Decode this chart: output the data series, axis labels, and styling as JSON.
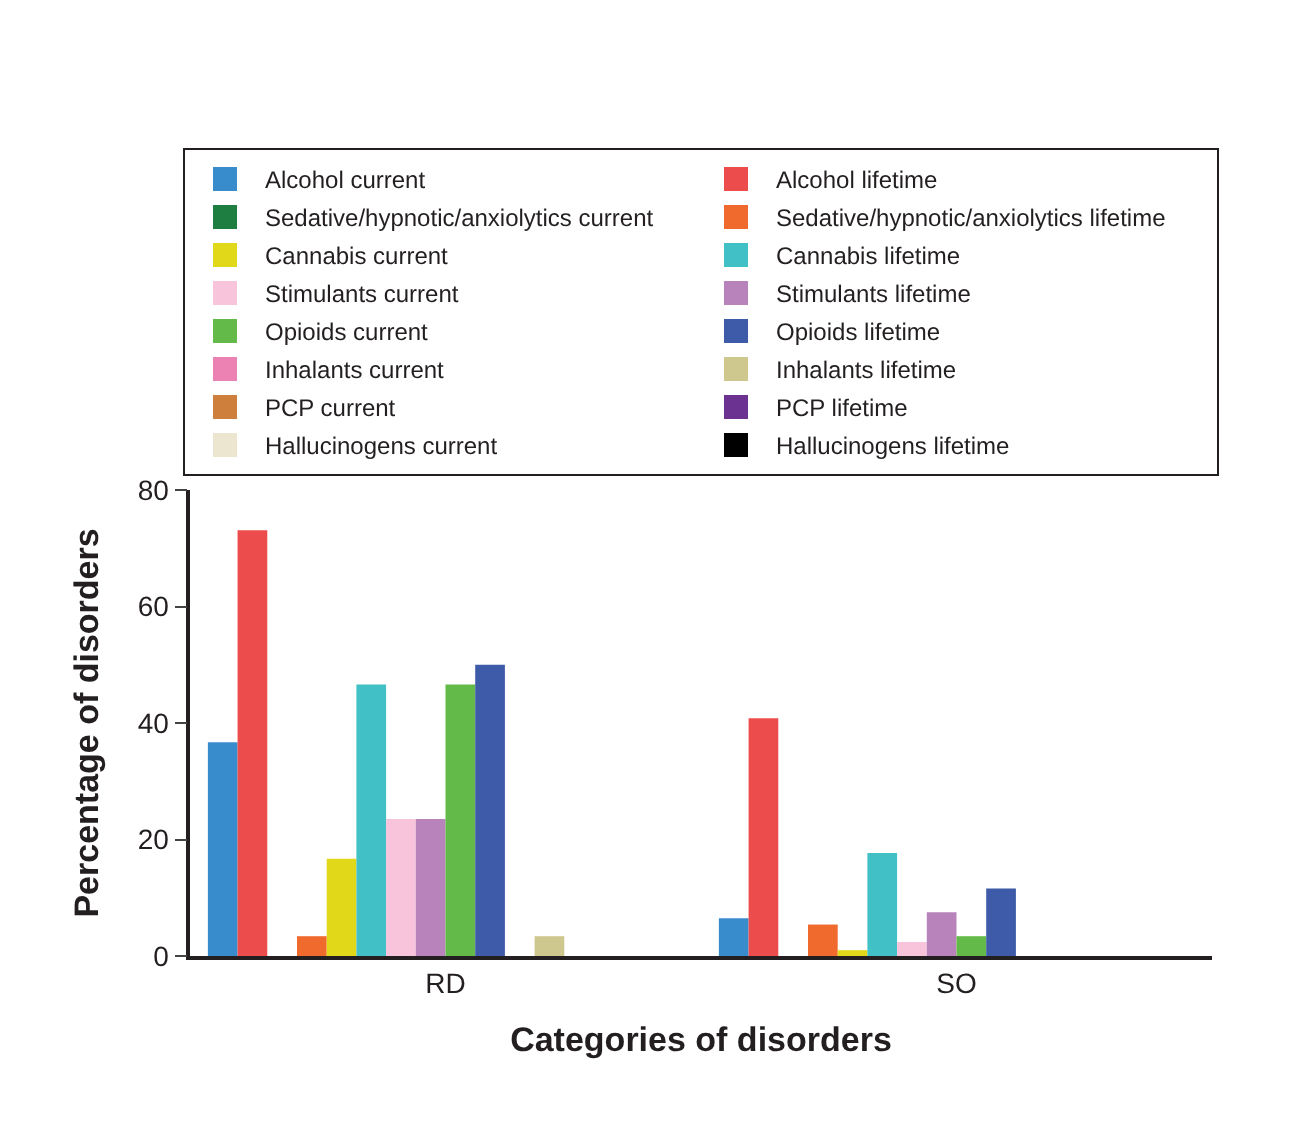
{
  "chart_data": {
    "type": "bar",
    "xlabel": "Categories of disorders",
    "ylabel": "Percentage of disorders",
    "categories": [
      "RD",
      "SO"
    ],
    "series": [
      {
        "name": "Alcohol current",
        "color": "#388ccc",
        "values": [
          36.7,
          6.5
        ]
      },
      {
        "name": "Alcohol lifetime",
        "color": "#ec4c4b",
        "values": [
          73.1,
          40.8
        ]
      },
      {
        "name": "Sedative/hypnotic/anxiolytics current",
        "color": "#1e7d40",
        "values": [
          0,
          0
        ]
      },
      {
        "name": "Sedative/hypnotic/anxiolytics lifetime",
        "color": "#f0692d",
        "values": [
          3.4,
          5.4
        ]
      },
      {
        "name": "Cannabis current",
        "color": "#e2d81a",
        "values": [
          16.7,
          1.0
        ]
      },
      {
        "name": "Cannabis lifetime",
        "color": "#41c1c6",
        "values": [
          46.6,
          17.7
        ]
      },
      {
        "name": "Stimulants current",
        "color": "#f7c4dc",
        "values": [
          23.5,
          2.4
        ]
      },
      {
        "name": "Stimulants lifetime",
        "color": "#b783ba",
        "values": [
          23.5,
          7.5
        ]
      },
      {
        "name": "Opioids current",
        "color": "#64ba48",
        "values": [
          46.6,
          3.4
        ]
      },
      {
        "name": "Opioids lifetime",
        "color": "#3d5ba8",
        "values": [
          50.0,
          11.6
        ]
      },
      {
        "name": "Inhalants current",
        "color": "#ec82b4",
        "values": [
          0,
          0
        ]
      },
      {
        "name": "Inhalants lifetime",
        "color": "#cfc88e",
        "values": [
          3.4,
          0
        ]
      },
      {
        "name": "PCP current",
        "color": "#cf7f3c",
        "values": [
          0,
          0
        ]
      },
      {
        "name": "PCP lifetime",
        "color": "#6b3291",
        "values": [
          0,
          0
        ]
      },
      {
        "name": "Hallucinogens current",
        "color": "#ece6d0",
        "values": [
          0,
          0
        ]
      },
      {
        "name": "Hallucinogens lifetime",
        "color": "#000000",
        "values": [
          0,
          0
        ]
      }
    ],
    "ylim": [
      0,
      80
    ],
    "yticks": [
      0,
      20,
      40,
      60,
      80
    ],
    "legend": "top"
  }
}
